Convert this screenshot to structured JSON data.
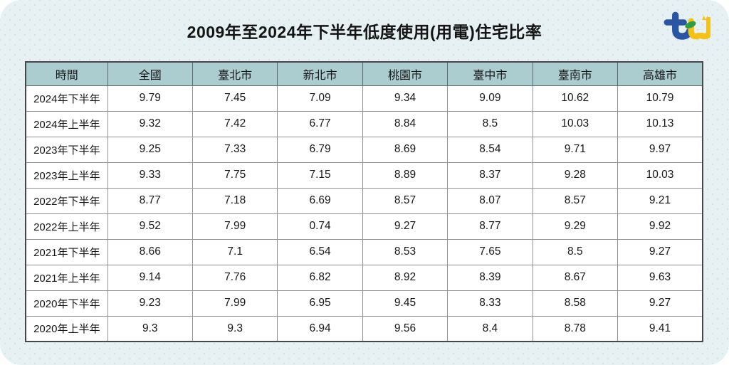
{
  "page": {
    "title": "2009年至2024年下半年低度使用(用電)住宅比率",
    "brand": "tcd-logo",
    "colors": {
      "card_bg": "#e7f1f4",
      "dot_pattern": "#d2e4e9",
      "header_bg": "#accdd0",
      "table_border": "#474747",
      "logo_blue": "#2a55a5",
      "logo_green": "#2e9e45",
      "logo_yellow": "#f3c218"
    }
  },
  "chart_data": {
    "type": "table",
    "title": "2009年至2024年下半年低度使用(用電)住宅比率",
    "headers": [
      "時間",
      "全國",
      "臺北市",
      "新北市",
      "桃園市",
      "臺中市",
      "臺南市",
      "高雄市"
    ],
    "rows": [
      [
        "2024年下半年",
        "9.79",
        "7.45",
        "7.09",
        "9.34",
        "9.09",
        "10.62",
        "10.79"
      ],
      [
        "2024年上半年",
        "9.32",
        "7.42",
        "6.77",
        "8.84",
        "8.5",
        "10.03",
        "10.13"
      ],
      [
        "2023年下半年",
        "9.25",
        "7.33",
        "6.79",
        "8.69",
        "8.54",
        "9.71",
        "9.97"
      ],
      [
        "2023年上半年",
        "9.33",
        "7.75",
        "7.15",
        "8.89",
        "8.37",
        "9.28",
        "10.03"
      ],
      [
        "2022年下半年",
        "8.77",
        "7.18",
        "6.69",
        "8.57",
        "8.07",
        "8.57",
        "9.21"
      ],
      [
        "2022年上半年",
        "9.52",
        "7.99",
        "0.74",
        "9.27",
        "8.77",
        "9.29",
        "9.92"
      ],
      [
        "2021年下半年",
        "8.66",
        "7.1",
        "6.54",
        "8.53",
        "7.65",
        "8.5",
        "9.27"
      ],
      [
        "2021年上半年",
        "9.14",
        "7.76",
        "6.82",
        "8.92",
        "8.39",
        "8.67",
        "9.63"
      ],
      [
        "2020年下半年",
        "9.23",
        "7.99",
        "6.95",
        "9.45",
        "8.33",
        "8.58",
        "9.27"
      ],
      [
        "2020年上半年",
        "9.3",
        "9.3",
        "6.94",
        "9.56",
        "8.4",
        "8.78",
        "9.41"
      ]
    ],
    "layout": {
      "legend": "none",
      "grid": "full-borders",
      "first_column_role": "time-period-label"
    }
  }
}
